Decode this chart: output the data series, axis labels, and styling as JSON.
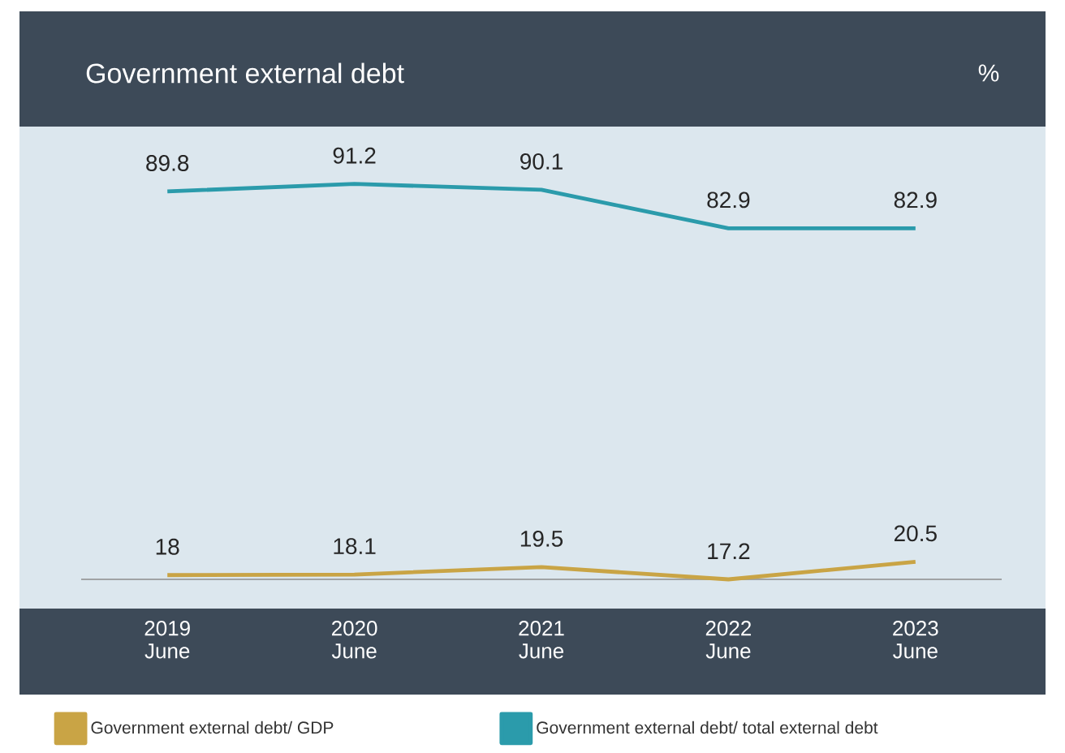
{
  "chart_data": {
    "type": "line",
    "title": "Government external debt",
    "ylabel": "%",
    "categories": [
      "2019 June",
      "2020 June",
      "2021 June",
      "2022 June",
      "2023 June"
    ],
    "series": [
      {
        "name": "Government external debt/ GDP",
        "color": "#c9a445",
        "values": [
          18,
          18.1,
          19.5,
          17.2,
          20.5
        ]
      },
      {
        "name": "Government external debt/ total external debt",
        "color": "#2b9bab",
        "values": [
          89.8,
          91.2,
          90.1,
          82.9,
          82.9
        ]
      }
    ],
    "tick_labels": "x",
    "data_labels": true,
    "legend": "bottom",
    "marker": "none",
    "line_style": "solid"
  }
}
